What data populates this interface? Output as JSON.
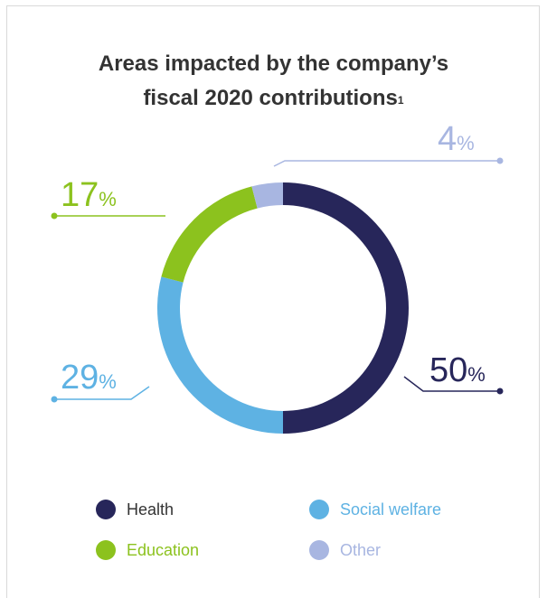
{
  "title": {
    "line1": "Areas impacted by the company’s",
    "line2": "fiscal 2020 contributions",
    "footnote": "1"
  },
  "chart_data": {
    "type": "pie",
    "variant": "donut",
    "categories": [
      "Health",
      "Social welfare",
      "Education",
      "Other"
    ],
    "values": [
      50,
      29,
      17,
      4
    ],
    "labels": [
      "50%",
      "29%",
      "17%",
      "4%"
    ],
    "colors": [
      "#27265a",
      "#5eb2e3",
      "#8cc21e",
      "#a8b6e1"
    ],
    "label_colors": [
      "#27265a",
      "#5eb2e3",
      "#8cc21e",
      "#a8b6e1"
    ],
    "unit": "%",
    "legend_position": "bottom"
  },
  "legend": [
    {
      "label": "Health",
      "color": "#27265a",
      "text_color": "#333333"
    },
    {
      "label": "Social welfare",
      "color": "#5eb2e3",
      "text_color": "#5eb2e3"
    },
    {
      "label": "Education",
      "color": "#8cc21e",
      "text_color": "#8cc21e"
    },
    {
      "label": "Other",
      "color": "#a8b6e1",
      "text_color": "#a8b6e1"
    }
  ]
}
